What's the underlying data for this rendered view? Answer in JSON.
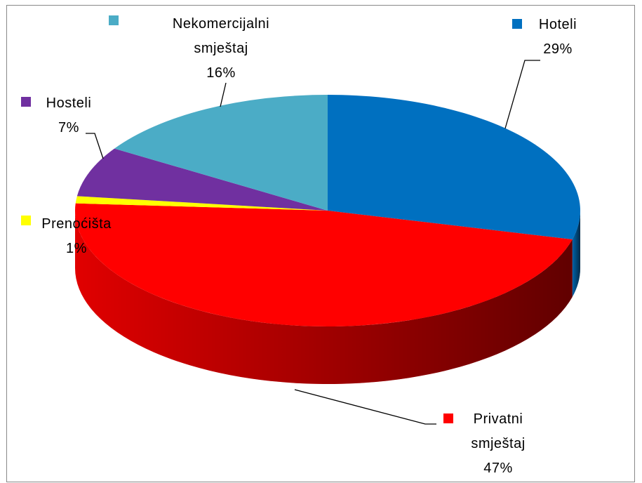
{
  "chart_data": {
    "type": "pie",
    "categories": [
      "Hoteli",
      "Privatni smještaj",
      "Prenoćišta",
      "Hosteli",
      "Nekomercijalni smještaj"
    ],
    "values": [
      29,
      47,
      1,
      7,
      16
    ],
    "value_labels": [
      "29%",
      "47%",
      "1%",
      "7%",
      "16%"
    ],
    "colors": [
      "#0070c0",
      "#ff0000",
      "#ffff00",
      "#7030a0",
      "#4bacc6"
    ]
  }
}
